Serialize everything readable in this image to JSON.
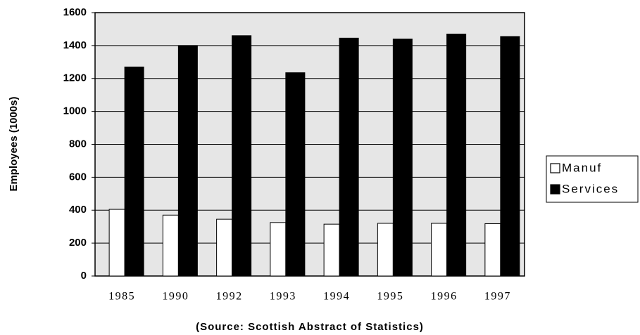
{
  "chart_data": {
    "type": "bar",
    "y_label": "Employees (1000s)",
    "x_label": "(Source:  Scottish Abstract of Statistics)",
    "categories": [
      "1985",
      "1990",
      "1992",
      "1993",
      "1994",
      "1995",
      "1996",
      "1997"
    ],
    "series": [
      {
        "name": "Manuf",
        "color": "#ffffff",
        "values": [
          405,
          370,
          345,
          325,
          315,
          320,
          320,
          318
        ]
      },
      {
        "name": "Services",
        "color": "#000000",
        "values": [
          1270,
          1400,
          1460,
          1235,
          1445,
          1440,
          1470,
          1455
        ]
      }
    ],
    "ylim": [
      0,
      1600
    ],
    "yticks": [
      0,
      200,
      400,
      600,
      800,
      1000,
      1200,
      1400,
      1600
    ],
    "grid": true,
    "legend": "right"
  }
}
